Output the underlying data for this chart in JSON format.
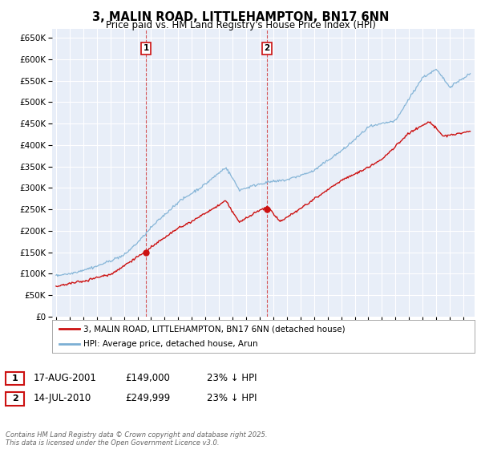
{
  "title": "3, MALIN ROAD, LITTLEHAMPTON, BN17 6NN",
  "subtitle": "Price paid vs. HM Land Registry's House Price Index (HPI)",
  "ylim": [
    0,
    670000
  ],
  "yticks": [
    0,
    50000,
    100000,
    150000,
    200000,
    250000,
    300000,
    350000,
    400000,
    450000,
    500000,
    550000,
    600000,
    650000
  ],
  "background_color": "#ffffff",
  "plot_background": "#e8eef8",
  "grid_color": "#ffffff",
  "hpi_color": "#7bafd4",
  "price_color": "#cc1111",
  "sale1_x": 2001.63,
  "sale1_price": 149000,
  "sale2_x": 2010.54,
  "sale2_price": 249999,
  "legend_line1": "3, MALIN ROAD, LITTLEHAMPTON, BN17 6NN (detached house)",
  "legend_line2": "HPI: Average price, detached house, Arun",
  "table_row1": [
    "1",
    "17-AUG-2001",
    "£149,000",
    "23% ↓ HPI"
  ],
  "table_row2": [
    "2",
    "14-JUL-2010",
    "£249,999",
    "23% ↓ HPI"
  ],
  "footer": "Contains HM Land Registry data © Crown copyright and database right 2025.\nThis data is licensed under the Open Government Licence v3.0."
}
